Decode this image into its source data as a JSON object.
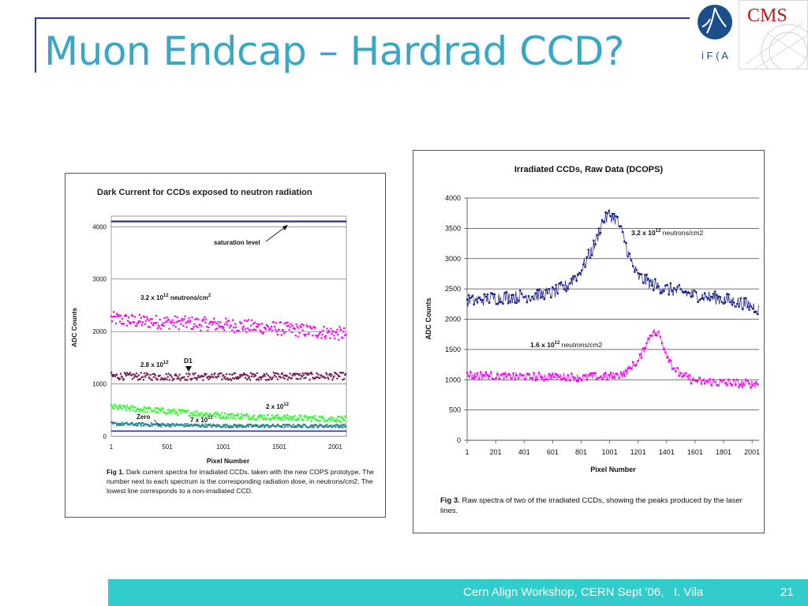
{
  "slide": {
    "title": "Muon Endcap – Hardrad CCD?",
    "footer_text": "Cern Align Workshop, CERN Sept '06,   I. Vila",
    "page_number": "21",
    "colors": {
      "title": "#3aa7c7",
      "footer": "#33cccc",
      "rule": "#2a3a9a"
    }
  },
  "logos": {
    "ifca_text": "i F ( A",
    "cms_text": "CMS"
  },
  "chart_data": [
    {
      "type": "scatter",
      "title": "Dark Current for CCDs exposed to neutron radiation",
      "xlabel": "Pixel Number",
      "ylabel": "ADC Counts",
      "xticks": [
        "1",
        "501",
        "1001",
        "1501",
        "2001"
      ],
      "yticks": [
        "0",
        "1000",
        "2000",
        "3000",
        "4000"
      ],
      "xlim": [
        1,
        2100
      ],
      "ylim": [
        0,
        4200
      ],
      "grid": true,
      "series": [
        {
          "key": "sat",
          "color": "#2a2f8c",
          "x": [
            1,
            2100
          ],
          "y": [
            4100,
            4100
          ]
        },
        {
          "key": "s32",
          "color": "#ff00ff",
          "x": [
            1,
            200,
            500,
            1000,
            1500,
            2100
          ],
          "y": [
            2250,
            2200,
            2180,
            2130,
            2060,
            1950
          ]
        },
        {
          "key": "s28",
          "color": "#7a1f4f",
          "x": [
            1,
            500,
            1000,
            1500,
            2100
          ],
          "y": [
            1150,
            1140,
            1140,
            1150,
            1150
          ]
        },
        {
          "key": "s2",
          "color": "#33ff33",
          "x": [
            1,
            500,
            1000,
            1500,
            2100
          ],
          "y": [
            560,
            480,
            400,
            360,
            330
          ]
        },
        {
          "key": "s7",
          "color": "#2d8a8a",
          "x": [
            1,
            500,
            1000,
            1500,
            2100
          ],
          "y": [
            240,
            220,
            200,
            200,
            200
          ]
        },
        {
          "key": "s0",
          "color": "#2b2fd1",
          "x": [
            1,
            2100
          ],
          "y": [
            100,
            100
          ]
        }
      ],
      "annotations": {
        "saturation": "saturation level",
        "label_32": "3.2 x 10",
        "label_32_exp": "12",
        "label_32_unit": " neutrons/cm",
        "label_32_unit_exp": "2",
        "label_28": "2.8 x 10",
        "label_28_exp": "12",
        "label_d1": "D1",
        "label_2": "2 x 10",
        "label_2_exp": "12",
        "label_zero": "Zero",
        "label_7": "7 x 10",
        "label_7_exp": "11"
      },
      "caption_bold": "Fig 1.",
      "caption_text": " Dark current spectra for irradiated CCDs, taken with the new COPS prototype. The number next to each spectrum is the corresponding radiation dose, in neutrons/cm2. The lowest line corresponds to a non-irradiated CCD."
    },
    {
      "type": "line",
      "title": "Irradiated CCDs, Raw Data (DCOPS)",
      "xlabel": "Pixel Number",
      "ylabel": "ADC Counts",
      "xticks": [
        "1",
        "201",
        "401",
        "601",
        "801",
        "1001",
        "1201",
        "1401",
        "1601",
        "1801",
        "2001"
      ],
      "yticks": [
        "0",
        "500",
        "1000",
        "1500",
        "2000",
        "2500",
        "3000",
        "3500",
        "4000"
      ],
      "xlim": [
        1,
        2050
      ],
      "ylim": [
        0,
        4000
      ],
      "grid": true,
      "series": [
        {
          "key": "high",
          "color": "#1a1f8a",
          "x": [
            1,
            200,
            400,
            600,
            700,
            800,
            900,
            950,
            1000,
            1050,
            1100,
            1150,
            1200,
            1300,
            1400,
            1600,
            1800,
            2000,
            2050
          ],
          "y": [
            2300,
            2350,
            2380,
            2430,
            2550,
            2800,
            3250,
            3600,
            3720,
            3650,
            3350,
            2950,
            2700,
            2580,
            2500,
            2400,
            2330,
            2220,
            2150
          ]
        },
        {
          "key": "low",
          "color": "#ff00ff",
          "x": [
            1,
            200,
            400,
            600,
            800,
            1000,
            1100,
            1200,
            1250,
            1300,
            1350,
            1400,
            1450,
            1500,
            1600,
            1800,
            2050
          ],
          "y": [
            1080,
            1060,
            1050,
            1050,
            1040,
            1050,
            1100,
            1300,
            1550,
            1800,
            1740,
            1450,
            1200,
            1080,
            980,
            950,
            930
          ]
        }
      ],
      "annotations": {
        "high_text": "3.2  x 10",
        "high_exp": "12",
        "high_unit": " neutrons/cm2",
        "low_text": "1.6  x 10",
        "low_exp": "12",
        "low_unit": " neutrons/cm2"
      },
      "caption_bold": "Fig 3.",
      "caption_text": " Raw spectra of two of the irradiated CCDs, showing the peaks produced by the laser lines."
    }
  ]
}
